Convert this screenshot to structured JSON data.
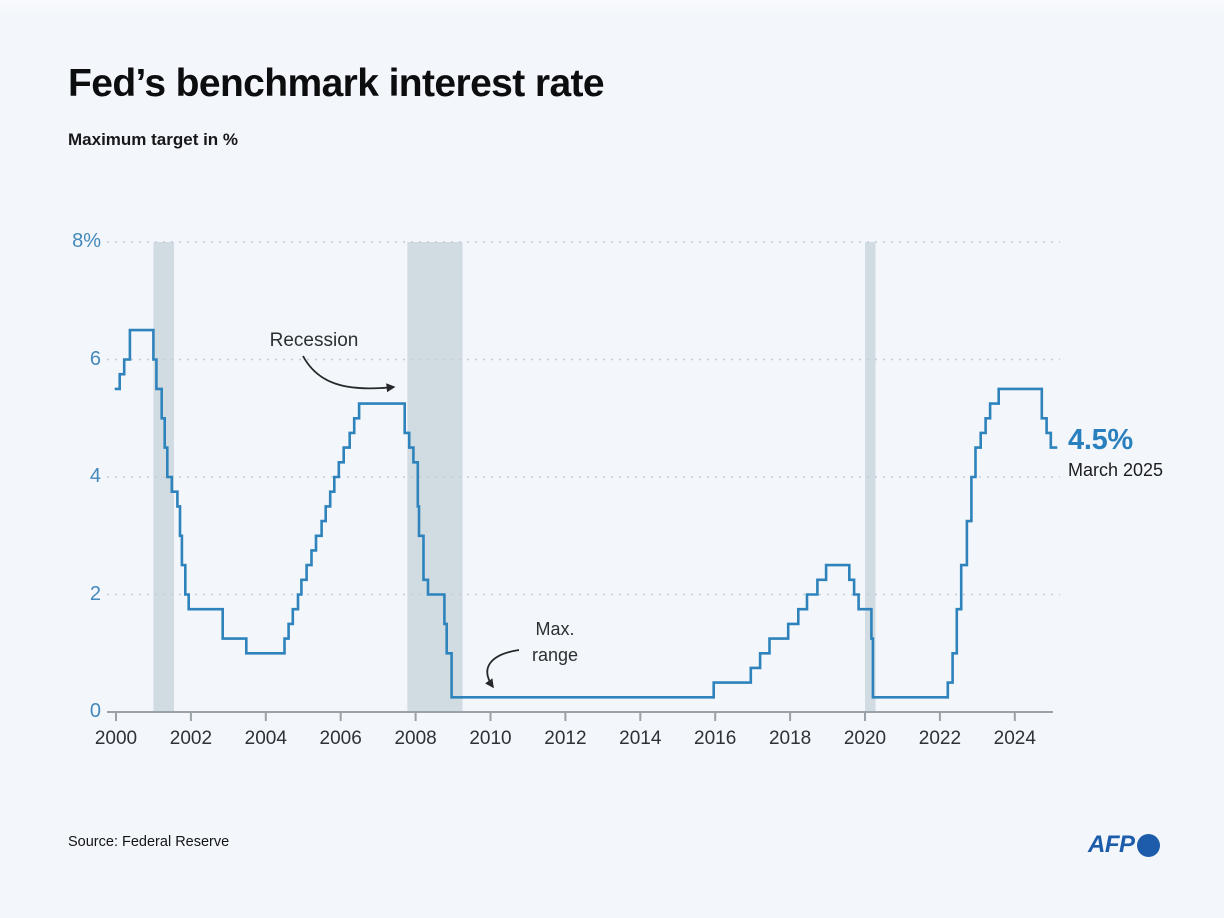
{
  "header": {
    "title": "Fed’s benchmark interest rate",
    "subtitle": "Maximum target in %"
  },
  "chart_data": {
    "type": "line",
    "line_style": "step-after",
    "title": "Fed’s benchmark interest rate",
    "ylabel": "Maximum target in %",
    "xlim": [
      1999.75,
      2025.1
    ],
    "ylim": [
      0,
      8
    ],
    "grid": "dashed-horizontal",
    "yticks": [
      {
        "value": 8,
        "label": "8%"
      },
      {
        "value": 6,
        "label": "6"
      },
      {
        "value": 4,
        "label": "4"
      },
      {
        "value": 2,
        "label": "2"
      },
      {
        "value": 0,
        "label": "0"
      }
    ],
    "xticks": [
      2000,
      2002,
      2004,
      2006,
      2008,
      2010,
      2012,
      2014,
      2016,
      2018,
      2020,
      2022,
      2024
    ],
    "recession_bands": [
      {
        "start": 2001.0,
        "end": 2001.55
      },
      {
        "start": 2007.78,
        "end": 2009.25
      },
      {
        "start": 2020.0,
        "end": 2020.28
      }
    ],
    "colors": {
      "line": "#2e83bc",
      "band": "#cdd8df",
      "grid": "#c6ccd4",
      "axis": "#9aa1a8",
      "ytick_label": "#4489bc",
      "accent": "#2a80bf"
    },
    "series": [
      {
        "name": "Fed benchmark rate (maximum target, %)",
        "points": [
          [
            2000.0,
            5.5
          ],
          [
            2000.1,
            5.75
          ],
          [
            2000.22,
            6.0
          ],
          [
            2000.37,
            6.5
          ],
          [
            2001.0,
            6.0
          ],
          [
            2001.08,
            5.5
          ],
          [
            2001.22,
            5.0
          ],
          [
            2001.3,
            4.5
          ],
          [
            2001.37,
            4.0
          ],
          [
            2001.49,
            3.75
          ],
          [
            2001.64,
            3.5
          ],
          [
            2001.71,
            3.0
          ],
          [
            2001.76,
            2.5
          ],
          [
            2001.85,
            2.0
          ],
          [
            2001.94,
            1.75
          ],
          [
            2002.85,
            1.25
          ],
          [
            2003.48,
            1.0
          ],
          [
            2004.5,
            1.25
          ],
          [
            2004.61,
            1.5
          ],
          [
            2004.72,
            1.75
          ],
          [
            2004.86,
            2.0
          ],
          [
            2004.95,
            2.25
          ],
          [
            2005.09,
            2.5
          ],
          [
            2005.22,
            2.75
          ],
          [
            2005.34,
            3.0
          ],
          [
            2005.49,
            3.25
          ],
          [
            2005.6,
            3.5
          ],
          [
            2005.72,
            3.75
          ],
          [
            2005.83,
            4.0
          ],
          [
            2005.95,
            4.25
          ],
          [
            2006.08,
            4.5
          ],
          [
            2006.24,
            4.75
          ],
          [
            2006.36,
            5.0
          ],
          [
            2006.49,
            5.25
          ],
          [
            2007.71,
            4.75
          ],
          [
            2007.83,
            4.5
          ],
          [
            2007.94,
            4.25
          ],
          [
            2008.06,
            3.5
          ],
          [
            2008.09,
            3.0
          ],
          [
            2008.21,
            2.25
          ],
          [
            2008.33,
            2.0
          ],
          [
            2008.77,
            1.5
          ],
          [
            2008.83,
            1.0
          ],
          [
            2008.96,
            0.25
          ],
          [
            2015.96,
            0.5
          ],
          [
            2016.95,
            0.75
          ],
          [
            2017.2,
            1.0
          ],
          [
            2017.45,
            1.25
          ],
          [
            2017.95,
            1.5
          ],
          [
            2018.22,
            1.75
          ],
          [
            2018.45,
            2.0
          ],
          [
            2018.73,
            2.25
          ],
          [
            2018.96,
            2.5
          ],
          [
            2019.58,
            2.25
          ],
          [
            2019.71,
            2.0
          ],
          [
            2019.83,
            1.75
          ],
          [
            2020.17,
            1.25
          ],
          [
            2020.21,
            0.25
          ],
          [
            2022.21,
            0.5
          ],
          [
            2022.34,
            1.0
          ],
          [
            2022.45,
            1.75
          ],
          [
            2022.57,
            2.5
          ],
          [
            2022.72,
            3.25
          ],
          [
            2022.84,
            4.0
          ],
          [
            2022.95,
            4.5
          ],
          [
            2023.09,
            4.75
          ],
          [
            2023.22,
            5.0
          ],
          [
            2023.34,
            5.25
          ],
          [
            2023.57,
            5.5
          ],
          [
            2024.72,
            5.0
          ],
          [
            2024.85,
            4.75
          ],
          [
            2024.96,
            4.5
          ],
          [
            2025.1,
            4.5
          ]
        ]
      }
    ]
  },
  "annotations": {
    "recession": "Recession",
    "max_line1": "Max.",
    "max_line2": "range",
    "current_value": "4.5%",
    "current_date": "March 2025"
  },
  "footer": {
    "source": "Source: Federal Reserve",
    "logo": "AFP"
  }
}
